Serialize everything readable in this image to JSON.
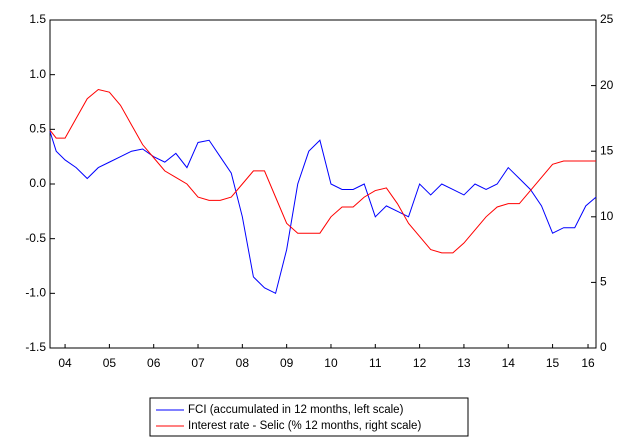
{
  "chart_data": {
    "type": "line",
    "x": [
      2004.16,
      2004.3,
      2004.5,
      2004.75,
      2005,
      2005.25,
      2005.5,
      2005.75,
      2006,
      2006.25,
      2006.5,
      2006.75,
      2007,
      2007.25,
      2007.5,
      2007.75,
      2008,
      2008.25,
      2008.5,
      2008.75,
      2009,
      2009.25,
      2009.5,
      2009.75,
      2010,
      2010.25,
      2010.5,
      2010.75,
      2011,
      2011.25,
      2011.5,
      2011.75,
      2012,
      2012.25,
      2012.5,
      2012.75,
      2013,
      2013.25,
      2013.5,
      2013.75,
      2014,
      2014.25,
      2014.5,
      2014.75,
      2015,
      2015.25,
      2015.5,
      2015.75,
      2016,
      2016.25,
      2016.48
    ],
    "series": [
      {
        "name": "FCI (accumulated in 12 months, left scale)",
        "color": "#0000ff",
        "values": [
          0.48,
          0.3,
          0.22,
          0.15,
          0.05,
          0.15,
          0.2,
          0.25,
          0.3,
          0.32,
          0.25,
          0.2,
          0.28,
          0.15,
          0.38,
          0.4,
          0.25,
          0.1,
          -0.3,
          -0.85,
          -0.95,
          -1.0,
          -0.6,
          0.0,
          0.3,
          0.4,
          0.0,
          -0.05,
          -0.05,
          0.0,
          -0.3,
          -0.2,
          -0.25,
          -0.3,
          0.0,
          -0.1,
          0.0,
          -0.05,
          -0.1,
          0.0,
          -0.05,
          0.0,
          0.15,
          0.05,
          -0.05,
          -0.2,
          -0.45,
          -0.4,
          -0.4,
          -0.2,
          -0.12
        ]
      },
      {
        "name": "Interest rate - Selic (% 12 months, right scale)",
        "color": "#ff0000",
        "axis": "y2",
        "values": [
          16.6,
          16,
          16,
          17.5,
          19,
          19.7,
          19.5,
          18.5,
          17,
          15.5,
          14.5,
          13.5,
          13,
          12.5,
          11.5,
          11.25,
          11.25,
          11.5,
          12.5,
          13.5,
          13.5,
          11.5,
          9.5,
          8.75,
          8.75,
          8.75,
          10,
          10.75,
          10.75,
          11.5,
          12,
          12.2,
          11,
          9.5,
          8.5,
          7.5,
          7.25,
          7.25,
          8,
          9,
          10,
          10.75,
          11,
          11,
          12,
          13,
          14,
          14.25,
          14.25,
          14.25,
          14.25
        ]
      }
    ],
    "xlim": [
      2004.16,
      2016.48
    ],
    "xticks": [
      {
        "value": 2004.5,
        "label": "04"
      },
      {
        "value": 2005.5,
        "label": "05"
      },
      {
        "value": 2006.5,
        "label": "06"
      },
      {
        "value": 2007.5,
        "label": "07"
      },
      {
        "value": 2008.5,
        "label": "08"
      },
      {
        "value": 2009.5,
        "label": "09"
      },
      {
        "value": 2010.5,
        "label": "10"
      },
      {
        "value": 2011.5,
        "label": "11"
      },
      {
        "value": 2012.5,
        "label": "12"
      },
      {
        "value": 2013.5,
        "label": "13"
      },
      {
        "value": 2014.5,
        "label": "14"
      },
      {
        "value": 2015.5,
        "label": "15"
      },
      {
        "value": 2016.3,
        "label": "16"
      }
    ],
    "ylim": [
      -1.5,
      1.5
    ],
    "yticks": [
      -1.5,
      {
        "value": -1,
        "label": "-1.0"
      },
      -0.5,
      {
        "value": 0,
        "label": "0.0"
      },
      0.5,
      {
        "value": 1,
        "label": "1.0"
      },
      1.5
    ],
    "y2lim": [
      0,
      25
    ],
    "y2ticks": [
      0,
      5,
      10,
      15,
      20,
      25
    ],
    "grid": false
  }
}
